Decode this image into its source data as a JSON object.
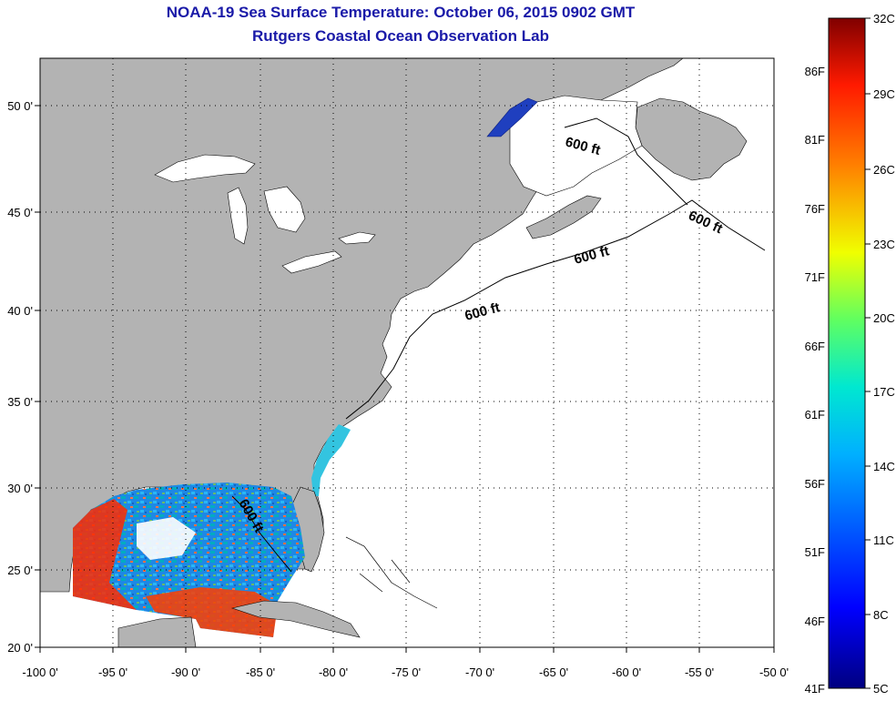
{
  "header": {
    "title": "NOAA-19 Sea Surface Temperature:  October 06, 2015 0902 GMT",
    "subtitle": "Rutgers Coastal Ocean Observation Lab"
  },
  "map": {
    "lon_ticks": [
      "-100 0'",
      "-95 0'",
      "-90 0'",
      "-85 0'",
      "-80 0'",
      "-75 0'",
      "-70 0'",
      "-65 0'",
      "-60 0'",
      "-55 0'",
      "-50 0'"
    ],
    "lat_ticks": [
      "50 0'",
      "45 0'",
      "40 0'",
      "35 0'",
      "30 0'",
      "25 0'",
      "20 0'"
    ],
    "contour_labels": [
      "600 ft",
      "600 ft",
      "600 ft",
      "600 ft",
      "600 ft"
    ],
    "colors": {
      "land": "#b3b3b3",
      "ocean": "#ffffff",
      "grid": "#000000"
    }
  },
  "colorbar": {
    "celsius_labels": [
      "32C",
      "29C",
      "26C",
      "23C",
      "20C",
      "17C",
      "14C",
      "11C",
      "8C",
      "5C"
    ],
    "fahrenheit_labels": [
      "86F",
      "81F",
      "76F",
      "71F",
      "66F",
      "61F",
      "56F",
      "51F",
      "46F",
      "41F"
    ]
  }
}
